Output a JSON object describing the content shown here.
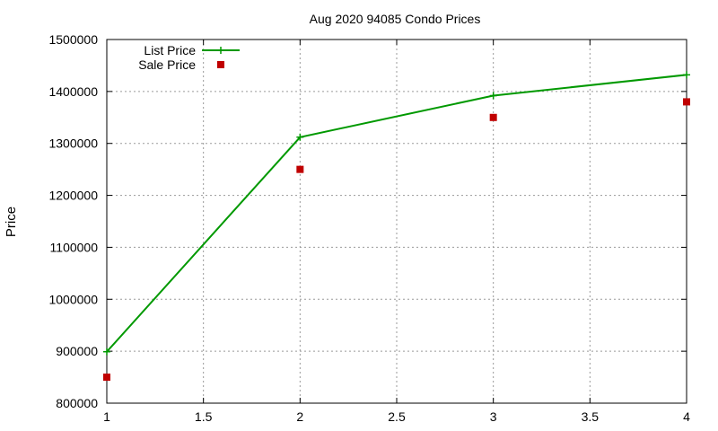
{
  "chart_data": {
    "type": "line",
    "title": "Aug 2020 94085 Condo Prices",
    "xlabel": "",
    "ylabel": "Price",
    "xlim": [
      1,
      4
    ],
    "ylim": [
      800000,
      1500000
    ],
    "xticks": [
      "1",
      "1.5",
      "2",
      "2.5",
      "3",
      "3.5",
      "4"
    ],
    "yticks": [
      "800000",
      "900000",
      "1000000",
      "1100000",
      "1200000",
      "1300000",
      "1400000",
      "1500000"
    ],
    "grid": true,
    "legend_position": "top-left",
    "series": [
      {
        "name": "List Price",
        "style": "linespoints",
        "marker": "plus",
        "color": "#009900",
        "x": [
          1,
          2,
          3,
          4
        ],
        "values": [
          899000,
          1312000,
          1392000,
          1432000
        ]
      },
      {
        "name": "Sale Price",
        "style": "points",
        "marker": "square",
        "color": "#c00000",
        "x": [
          1,
          2,
          3,
          4
        ],
        "values": [
          850000,
          1250000,
          1350000,
          1380000
        ]
      }
    ]
  }
}
